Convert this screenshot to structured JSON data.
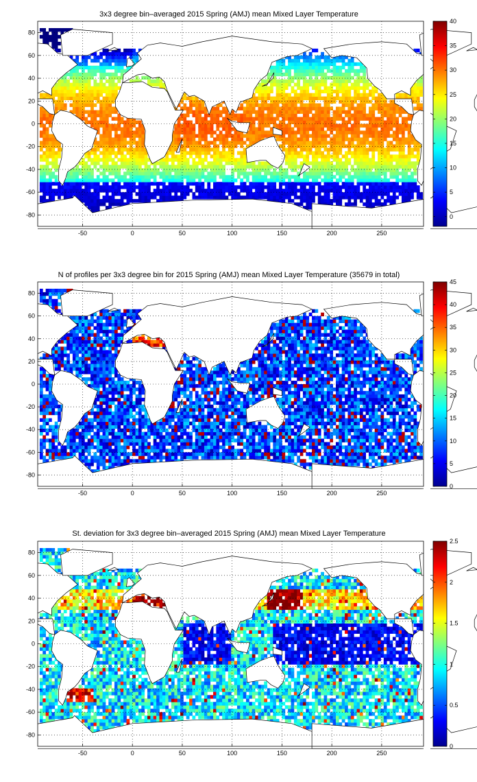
{
  "chart_data": [
    {
      "type": "heatmap",
      "title": "3x3 degree bin–averaged 2015 Spring (AMJ) mean Mixed Layer Temperature",
      "xlim": [
        -95,
        292
      ],
      "ylim": [
        -90,
        90
      ],
      "xticks": [
        -50,
        0,
        50,
        100,
        150,
        200,
        250
      ],
      "yticks": [
        80,
        60,
        40,
        20,
        0,
        -20,
        -40,
        -60,
        -80
      ],
      "grid": true,
      "colormap": "jet",
      "colorbar": {
        "min": -2,
        "max": 40,
        "ticks": [
          40,
          35,
          30,
          25,
          20,
          15,
          10,
          5,
          0
        ]
      },
      "field": "sst",
      "bin_size_deg": 3,
      "bins": [
        {
          "lat": 60,
          "lon_from": 190,
          "lon_to": 240,
          "value": 4
        },
        {
          "lat": 40,
          "lon_from": -75,
          "lon_to": -10,
          "value": 16
        },
        {
          "lat": 20,
          "lon_from": -80,
          "lon_to": -20,
          "value": 25
        },
        {
          "lat": 0,
          "lon_from": -50,
          "lon_to": -5,
          "value": 28
        },
        {
          "lat": 0,
          "lon_from": 45,
          "lon_to": 110,
          "value": 29
        },
        {
          "lat": 0,
          "lon_from": 120,
          "lon_to": 270,
          "value": 29
        },
        {
          "lat": -20,
          "lon_from": -40,
          "lon_to": 10,
          "value": 23
        },
        {
          "lat": -40,
          "lon_from": -60,
          "lon_to": 290,
          "value": 13
        },
        {
          "lat": -60,
          "lon_from": -90,
          "lon_to": 290,
          "value": 1
        }
      ]
    },
    {
      "type": "heatmap",
      "title": "N of profiles per 3x3 degree bin for 2015 Spring (AMJ) mean Mixed Layer Temperature  (35679 in total)",
      "xlim": [
        -95,
        292
      ],
      "ylim": [
        -90,
        90
      ],
      "xticks": [
        -50,
        0,
        50,
        100,
        150,
        200,
        250
      ],
      "yticks": [
        80,
        60,
        40,
        20,
        0,
        -20,
        -40,
        -60,
        -80
      ],
      "grid": true,
      "colormap": "jet",
      "colorbar": {
        "min": 0,
        "max": 45,
        "ticks": [
          45,
          40,
          35,
          30,
          25,
          20,
          15,
          10,
          5,
          0
        ]
      },
      "field": "count",
      "total_profiles": 35679,
      "bins": [
        {
          "lat": 40,
          "lon_from": 0,
          "lon_to": 40,
          "value": 40
        },
        {
          "lat": 25,
          "lon_from": 55,
          "lon_to": 70,
          "value": 38
        },
        {
          "lat": 35,
          "lon_from": 130,
          "lon_to": 150,
          "value": 40
        },
        {
          "lat": 0,
          "lon_from": -60,
          "lon_to": 290,
          "value": 10
        },
        {
          "lat": -40,
          "lon_from": -60,
          "lon_to": 290,
          "value": 8
        }
      ]
    },
    {
      "type": "heatmap",
      "title": "St. deviation for 3x3 degree bin–averaged 2015 Spring (AMJ) mean Mixed Layer Temperature",
      "xlim": [
        -95,
        292
      ],
      "ylim": [
        -90,
        90
      ],
      "xticks": [
        -50,
        0,
        50,
        100,
        150,
        200,
        250
      ],
      "yticks": [
        80,
        60,
        40,
        20,
        0,
        -20,
        -40,
        -60,
        -80
      ],
      "grid": true,
      "colormap": "jet",
      "colorbar": {
        "min": 0,
        "max": 2.5,
        "ticks": [
          2.5,
          2,
          1.5,
          1,
          0.5,
          0
        ]
      },
      "field": "std",
      "bins": [
        {
          "lat": 40,
          "lon_from": 0,
          "lon_to": 35,
          "value": 2.4
        },
        {
          "lat": 40,
          "lon_from": 140,
          "lon_to": 170,
          "value": 2.4
        },
        {
          "lat": 0,
          "lon_from": 50,
          "lon_to": 100,
          "value": 0.2
        },
        {
          "lat": 0,
          "lon_from": 140,
          "lon_to": 280,
          "value": 0.2
        },
        {
          "lat": -45,
          "lon_from": -60,
          "lon_to": -40,
          "value": 2.3
        }
      ]
    }
  ]
}
